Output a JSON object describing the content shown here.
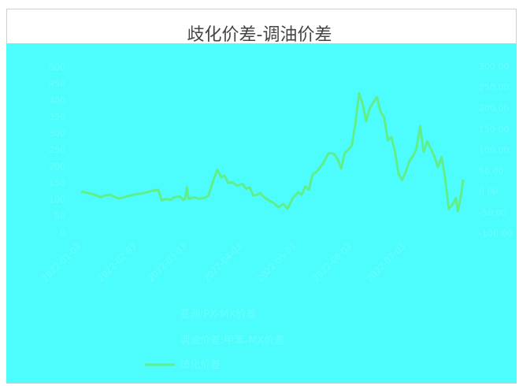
{
  "chart_data": {
    "type": "line",
    "title": "歧化价差-调油价差",
    "background": "#4dfcfc",
    "faint_color": "#66ffff",
    "line_color": "#5fef8a",
    "yleft": {
      "ticks": [
        "0",
        "50",
        "100",
        "150",
        "200",
        "250",
        "300",
        "350",
        "400",
        "450",
        "500"
      ],
      "lim": [
        0,
        500
      ]
    },
    "yright": {
      "ticks": [
        "-100.00",
        "-50.00",
        "0.00",
        "50.00",
        "100.00",
        "150.00",
        "200.00",
        "250.00",
        "300.00"
      ],
      "lim": [
        -100,
        300
      ]
    },
    "x_ticks": [
      "2022-01-03",
      "2022-02-03",
      "2022-03-03",
      "2022-04-03",
      "2022-05-03",
      "2022-06-03",
      "2022-07-03"
    ],
    "x_range": [
      "2022-01-03",
      "2022-08-04"
    ],
    "legend": [
      "亚洲:PX-MX价差",
      "调油价差:甲苯-MX价差",
      "歧化价差"
    ],
    "series": [
      {
        "axis": "right",
        "points": [
          [
            "2022-01-03",
            0
          ],
          [
            "2022-01-06",
            -3
          ],
          [
            "2022-01-09",
            -6
          ],
          [
            "2022-01-12",
            -10
          ],
          [
            "2022-01-14",
            -14
          ],
          [
            "2022-01-16",
            -10
          ],
          [
            "2022-01-19",
            -8
          ],
          [
            "2022-01-21",
            -12
          ],
          [
            "2022-01-24",
            -17
          ],
          [
            "2022-01-27",
            -14
          ],
          [
            "2022-02-01",
            -8
          ],
          [
            "2022-02-07",
            -4
          ],
          [
            "2022-02-12",
            2
          ],
          [
            "2022-02-15",
            4
          ],
          [
            "2022-02-17",
            -22
          ],
          [
            "2022-02-19",
            -18
          ],
          [
            "2022-02-22",
            -20
          ],
          [
            "2022-02-24",
            -14
          ],
          [
            "2022-02-27",
            -12
          ],
          [
            "2022-03-01",
            -20
          ],
          [
            "2022-03-02",
            -18
          ],
          [
            "2022-03-03",
            10
          ],
          [
            "2022-03-04",
            -18
          ],
          [
            "2022-03-07",
            -14
          ],
          [
            "2022-03-10",
            -18
          ],
          [
            "2022-03-13",
            -15
          ],
          [
            "2022-03-15",
            -10
          ],
          [
            "2022-03-18",
            30
          ],
          [
            "2022-03-20",
            52
          ],
          [
            "2022-03-22",
            34
          ],
          [
            "2022-03-24",
            38
          ],
          [
            "2022-03-26",
            20
          ],
          [
            "2022-03-28",
            22
          ],
          [
            "2022-03-31",
            14
          ],
          [
            "2022-04-03",
            18
          ],
          [
            "2022-04-05",
            6
          ],
          [
            "2022-04-07",
            10
          ],
          [
            "2022-04-09",
            -10
          ],
          [
            "2022-04-11",
            -8
          ],
          [
            "2022-04-13",
            -4
          ],
          [
            "2022-04-15",
            -14
          ],
          [
            "2022-04-18",
            -22
          ],
          [
            "2022-04-21",
            -30
          ],
          [
            "2022-04-23",
            -38
          ],
          [
            "2022-04-26",
            -30
          ],
          [
            "2022-04-28",
            -42
          ],
          [
            "2022-05-01",
            -16
          ],
          [
            "2022-05-04",
            -2
          ],
          [
            "2022-05-06",
            -8
          ],
          [
            "2022-05-08",
            12
          ],
          [
            "2022-05-10",
            4
          ],
          [
            "2022-05-12",
            40
          ],
          [
            "2022-05-15",
            50
          ],
          [
            "2022-05-18",
            68
          ],
          [
            "2022-05-21",
            92
          ],
          [
            "2022-05-24",
            90
          ],
          [
            "2022-05-26",
            78
          ],
          [
            "2022-05-28",
            55
          ],
          [
            "2022-05-30",
            92
          ],
          [
            "2022-06-01",
            100
          ],
          [
            "2022-06-03",
            110
          ],
          [
            "2022-06-05",
            165
          ],
          [
            "2022-06-07",
            235
          ],
          [
            "2022-06-09",
            210
          ],
          [
            "2022-06-11",
            168
          ],
          [
            "2022-06-13",
            200
          ],
          [
            "2022-06-15",
            214
          ],
          [
            "2022-06-17",
            226
          ],
          [
            "2022-06-19",
            190
          ],
          [
            "2022-06-21",
            178
          ],
          [
            "2022-06-23",
            122
          ],
          [
            "2022-06-25",
            130
          ],
          [
            "2022-06-27",
            96
          ],
          [
            "2022-06-29",
            42
          ],
          [
            "2022-07-01",
            28
          ],
          [
            "2022-07-03",
            46
          ],
          [
            "2022-07-05",
            72
          ],
          [
            "2022-07-07",
            84
          ],
          [
            "2022-07-09",
            102
          ],
          [
            "2022-07-11",
            156
          ],
          [
            "2022-07-13",
            95
          ],
          [
            "2022-07-15",
            120
          ],
          [
            "2022-07-17",
            102
          ],
          [
            "2022-07-19",
            84
          ],
          [
            "2022-07-21",
            58
          ],
          [
            "2022-07-23",
            82
          ],
          [
            "2022-07-25",
            32
          ],
          [
            "2022-07-27",
            -42
          ],
          [
            "2022-07-29",
            -32
          ],
          [
            "2022-07-31",
            -16
          ],
          [
            "2022-08-01",
            -48
          ],
          [
            "2022-08-02",
            -30
          ],
          [
            "2022-08-03",
            -6
          ],
          [
            "2022-08-04",
            28
          ]
        ]
      }
    ]
  }
}
